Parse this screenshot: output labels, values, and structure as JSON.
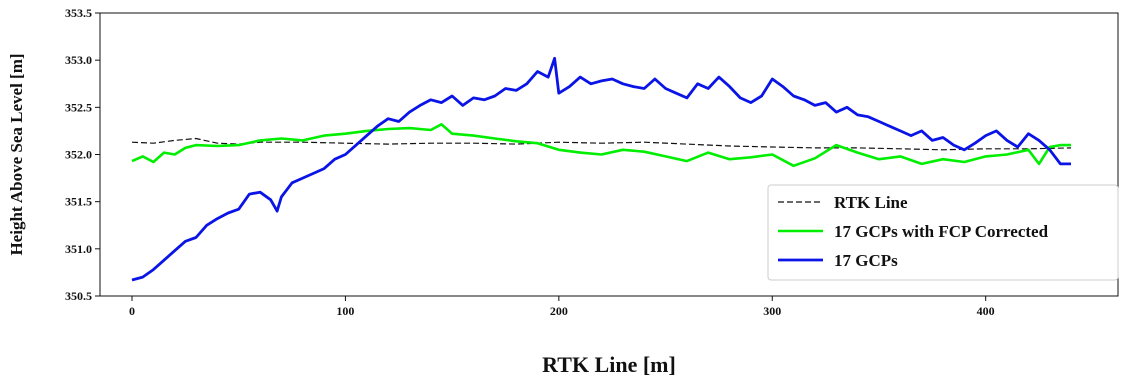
{
  "chart_data": {
    "type": "line",
    "xlabel": "RTK Line [m]",
    "ylabel": "Height Above Sea  Level [m]",
    "xlim": [
      -15,
      462
    ],
    "ylim": [
      350.5,
      353.5
    ],
    "x_ticks": [
      0,
      100,
      200,
      300,
      400
    ],
    "x_tick_labels": [
      "0",
      "100",
      "200",
      "300",
      "400"
    ],
    "y_ticks": [
      350.5,
      351.0,
      351.5,
      352.0,
      352.5,
      353.0,
      353.5
    ],
    "y_tick_labels": [
      "350.5",
      "351.0",
      "351.5",
      "352.0",
      "352.5",
      "353.0",
      "353.5"
    ],
    "grid": false,
    "legend_position": "lower-right",
    "series": [
      {
        "name": "RTK Line",
        "color": "#111111",
        "style": "dashed",
        "x": [
          0,
          10,
          20,
          30,
          40,
          50,
          60,
          80,
          100,
          120,
          140,
          160,
          180,
          200,
          220,
          240,
          260,
          280,
          300,
          320,
          340,
          360,
          380,
          400,
          420,
          440
        ],
        "y": [
          352.13,
          352.12,
          352.15,
          352.17,
          352.12,
          352.11,
          352.13,
          352.13,
          352.12,
          352.11,
          352.12,
          352.12,
          352.11,
          352.13,
          352.12,
          352.13,
          352.11,
          352.09,
          352.08,
          352.07,
          352.07,
          352.06,
          352.05,
          352.06,
          352.06,
          352.07
        ]
      },
      {
        "name": "17 GCPs with FCP Corrected",
        "color": "#00ee00",
        "style": "solid",
        "x": [
          0,
          5,
          10,
          15,
          20,
          25,
          30,
          40,
          50,
          60,
          70,
          80,
          90,
          100,
          110,
          120,
          130,
          140,
          145,
          150,
          160,
          170,
          180,
          190,
          200,
          210,
          220,
          230,
          240,
          250,
          260,
          270,
          280,
          290,
          300,
          310,
          320,
          330,
          340,
          350,
          360,
          370,
          380,
          390,
          400,
          410,
          420,
          425,
          430,
          435,
          440
        ],
        "y": [
          351.93,
          351.98,
          351.92,
          352.02,
          352.0,
          352.07,
          352.1,
          352.09,
          352.1,
          352.15,
          352.17,
          352.15,
          352.2,
          352.22,
          352.25,
          352.27,
          352.28,
          352.26,
          352.32,
          352.22,
          352.2,
          352.17,
          352.14,
          352.12,
          352.05,
          352.02,
          352.0,
          352.05,
          352.03,
          351.98,
          351.93,
          352.02,
          351.95,
          351.97,
          352.0,
          351.88,
          351.96,
          352.1,
          352.02,
          351.95,
          351.98,
          351.9,
          351.95,
          351.92,
          351.98,
          352.0,
          352.05,
          351.9,
          352.08,
          352.1,
          352.1
        ]
      },
      {
        "name": "17 GCPs",
        "color": "#0a14e6",
        "style": "solid",
        "x": [
          0,
          5,
          10,
          15,
          20,
          25,
          30,
          35,
          40,
          45,
          50,
          55,
          60,
          65,
          68,
          70,
          75,
          80,
          85,
          90,
          95,
          100,
          105,
          110,
          115,
          120,
          125,
          130,
          135,
          140,
          145,
          150,
          155,
          160,
          165,
          170,
          175,
          180,
          185,
          190,
          195,
          198,
          200,
          205,
          210,
          215,
          220,
          225,
          230,
          235,
          240,
          245,
          250,
          255,
          260,
          265,
          270,
          275,
          280,
          285,
          290,
          295,
          300,
          305,
          310,
          315,
          320,
          325,
          330,
          335,
          340,
          345,
          350,
          355,
          360,
          365,
          370,
          375,
          380,
          385,
          390,
          395,
          400,
          405,
          410,
          415,
          420,
          425,
          430,
          435,
          440
        ],
        "y": [
          350.67,
          350.7,
          350.78,
          350.88,
          350.98,
          351.08,
          351.12,
          351.25,
          351.32,
          351.38,
          351.42,
          351.58,
          351.6,
          351.52,
          351.4,
          351.55,
          351.7,
          351.75,
          351.8,
          351.85,
          351.95,
          352.0,
          352.1,
          352.2,
          352.3,
          352.38,
          352.35,
          352.45,
          352.52,
          352.58,
          352.55,
          352.62,
          352.52,
          352.6,
          352.58,
          352.62,
          352.7,
          352.68,
          352.75,
          352.88,
          352.82,
          353.02,
          352.65,
          352.72,
          352.82,
          352.75,
          352.78,
          352.8,
          352.75,
          352.72,
          352.7,
          352.8,
          352.7,
          352.65,
          352.6,
          352.75,
          352.7,
          352.82,
          352.72,
          352.6,
          352.55,
          352.62,
          352.8,
          352.72,
          352.62,
          352.58,
          352.52,
          352.55,
          352.45,
          352.5,
          352.42,
          352.4,
          352.35,
          352.3,
          352.25,
          352.2,
          352.25,
          352.15,
          352.18,
          352.1,
          352.05,
          352.12,
          352.2,
          352.25,
          352.15,
          352.08,
          352.22,
          352.15,
          352.05,
          351.9,
          351.9
        ]
      }
    ]
  }
}
